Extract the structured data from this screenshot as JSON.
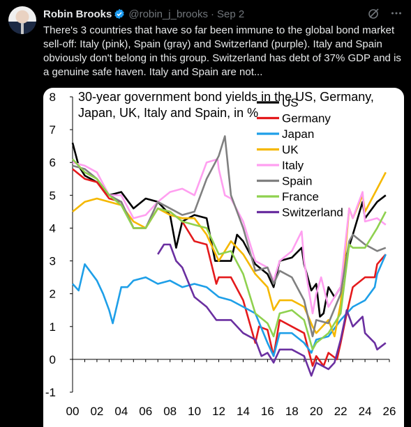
{
  "tweet": {
    "author_name": "Robin Brooks",
    "handle": "@robin_j_brooks",
    "separator": "·",
    "date": "Sep 2",
    "text": "There's 3 countries that have so far been immune to the global bond market sell-off: Italy (pink), Spain (gray) and Switzerland (purple). Italy and Spain obviously don't belong in this group. Switzerland has debt of 37% GDP and is a genuine safe haven. Italy and Spain are not...",
    "icons": [
      "verified-badge-icon",
      "grok-icon",
      "more-icon"
    ]
  },
  "chart_data": {
    "type": "line",
    "title": "30-year government bond yields in the US, Germany, Japan, UK, Italy and Spain, in %",
    "title_lines": [
      "30-year government bond yields in the US, Germany,",
      "Japan, UK, Italy and Spain, in %"
    ],
    "xlabel": "",
    "ylabel": "",
    "xlim": [
      2000,
      2026
    ],
    "ylim": [
      -1,
      8
    ],
    "x_ticks": [
      "00",
      "02",
      "04",
      "06",
      "08",
      "10",
      "12",
      "14",
      "16",
      "18",
      "20",
      "22",
      "24",
      "26"
    ],
    "y_ticks": [
      "-1",
      "0",
      "1",
      "2",
      "3",
      "4",
      "5",
      "6",
      "7",
      "8"
    ],
    "grid": false,
    "legend_position": "top-right",
    "series": [
      {
        "name": "US",
        "color": "#000000",
        "x": [
          2000,
          2000.5,
          2001,
          2002,
          2003,
          2004,
          2005,
          2006,
          2007,
          2007.5,
          2008,
          2008.5,
          2009,
          2010,
          2011,
          2011.7,
          2012,
          2013,
          2013.5,
          2014,
          2015,
          2016,
          2016.5,
          2017,
          2018,
          2018.8,
          2019,
          2019.6,
          2020,
          2020.3,
          2020.6,
          2021,
          2021.5,
          2022,
          2022.5,
          2023,
          2023.8,
          2024,
          2024.8,
          2025,
          2025.7
        ],
        "y": [
          6.6,
          5.9,
          5.6,
          5.4,
          5.0,
          5.1,
          4.6,
          4.9,
          4.8,
          4.6,
          4.4,
          3.4,
          4.2,
          4.4,
          4.3,
          3.0,
          3.0,
          3.0,
          3.8,
          3.6,
          2.9,
          2.6,
          2.2,
          3.0,
          3.1,
          3.4,
          2.9,
          2.1,
          2.3,
          1.3,
          1.4,
          2.2,
          1.9,
          2.2,
          3.2,
          3.8,
          4.8,
          4.3,
          4.7,
          4.8,
          5.0
        ]
      },
      {
        "name": "Germany",
        "color": "#e41a1c",
        "x": [
          2000,
          2001,
          2002,
          2003,
          2004,
          2005,
          2006,
          2007,
          2008,
          2009,
          2010,
          2011,
          2011.8,
          2012,
          2013,
          2014,
          2015,
          2015.3,
          2016,
          2016.5,
          2017,
          2018,
          2019,
          2019.7,
          2020,
          2020.6,
          2021,
          2021.7,
          2022,
          2022.5,
          2023,
          2024,
          2024.8,
          2025,
          2025.7
        ],
        "y": [
          5.8,
          5.5,
          5.4,
          4.9,
          4.8,
          4.0,
          4.0,
          4.6,
          4.5,
          4.2,
          3.6,
          3.5,
          2.3,
          2.5,
          2.5,
          1.8,
          0.5,
          1.0,
          0.9,
          0.1,
          1.2,
          1.0,
          0.8,
          -0.2,
          0.1,
          -0.2,
          0.2,
          0.0,
          0.5,
          1.4,
          2.2,
          2.5,
          2.5,
          2.9,
          3.2
        ]
      },
      {
        "name": "Japan",
        "color": "#1e9fe8",
        "x": [
          2000,
          2000.5,
          2001,
          2002,
          2002.5,
          2003,
          2003.3,
          2004,
          2004.5,
          2005,
          2006,
          2007,
          2008,
          2009,
          2010,
          2011,
          2012,
          2013,
          2014,
          2015,
          2016,
          2016.5,
          2017,
          2018,
          2019,
          2019.6,
          2020,
          2021,
          2022,
          2023,
          2024,
          2024.8,
          2025,
          2025.7
        ],
        "y": [
          2.3,
          2.1,
          2.9,
          2.4,
          2.0,
          1.5,
          1.1,
          2.2,
          2.2,
          2.4,
          2.5,
          2.3,
          2.4,
          2.2,
          2.3,
          2.2,
          1.9,
          1.8,
          1.6,
          1.4,
          0.5,
          0.1,
          0.8,
          0.8,
          0.5,
          0.2,
          0.6,
          0.7,
          1.2,
          1.6,
          1.8,
          2.2,
          2.6,
          3.2
        ]
      },
      {
        "name": "UK",
        "color": "#f5b800",
        "x": [
          2000,
          2001,
          2002,
          2003,
          2004,
          2005,
          2006,
          2007,
          2008,
          2009,
          2010,
          2011,
          2012,
          2013,
          2014,
          2015,
          2016,
          2016.5,
          2017,
          2018,
          2019,
          2019.7,
          2020,
          2021,
          2021.5,
          2022,
          2022.7,
          2023,
          2023.8,
          2024,
          2025,
          2025.7
        ],
        "y": [
          4.5,
          4.8,
          4.9,
          4.8,
          4.7,
          4.2,
          4.0,
          4.6,
          4.4,
          4.3,
          4.3,
          3.8,
          3.0,
          3.6,
          3.2,
          2.6,
          2.2,
          1.5,
          1.8,
          1.8,
          1.6,
          1.0,
          0.8,
          1.2,
          0.7,
          1.7,
          4.6,
          4.3,
          5.0,
          4.5,
          5.2,
          5.7
        ]
      },
      {
        "name": "Italy",
        "color": "#ff9ff0",
        "x": [
          2000,
          2001,
          2002,
          2003,
          2004,
          2005,
          2006,
          2007,
          2008,
          2009,
          2010,
          2011,
          2011.9,
          2012,
          2012.5,
          2013,
          2014,
          2015,
          2016,
          2016.5,
          2017,
          2018,
          2018.8,
          2019,
          2019.7,
          2020,
          2020.4,
          2021,
          2022,
          2022.7,
          2023,
          2023.8,
          2024,
          2025,
          2025.7
        ],
        "y": [
          6.0,
          5.9,
          5.7,
          5.0,
          5.0,
          4.3,
          4.4,
          4.8,
          5.1,
          5.2,
          5.0,
          6.0,
          6.1,
          5.8,
          5.0,
          4.9,
          4.2,
          3.0,
          2.8,
          2.4,
          3.0,
          3.3,
          3.9,
          3.0,
          1.4,
          2.0,
          2.5,
          1.6,
          2.2,
          4.6,
          4.3,
          5.1,
          4.2,
          4.3,
          4.1
        ]
      },
      {
        "name": "Spain",
        "color": "#808080",
        "x": [
          2000,
          2001,
          2002,
          2003,
          2004,
          2005,
          2006,
          2007,
          2008,
          2009,
          2010,
          2011,
          2012,
          2012.5,
          2013,
          2014,
          2015,
          2016,
          2016.5,
          2017,
          2018,
          2019,
          2019.7,
          2020,
          2021,
          2022,
          2022.7,
          2023,
          2024,
          2025,
          2025.7
        ],
        "y": [
          5.9,
          5.8,
          5.5,
          5.0,
          4.8,
          4.0,
          4.0,
          4.8,
          4.6,
          4.4,
          4.5,
          5.5,
          6.2,
          6.8,
          5.0,
          4.0,
          2.7,
          2.8,
          2.3,
          2.7,
          2.5,
          1.8,
          0.7,
          1.2,
          1.1,
          2.0,
          3.6,
          3.8,
          3.5,
          3.3,
          3.4
        ]
      },
      {
        "name": "France",
        "color": "#8fd14f",
        "x": [
          2000,
          2001,
          2002,
          2003,
          2004,
          2005,
          2006,
          2007,
          2008,
          2009,
          2010,
          2011,
          2012,
          2013,
          2014,
          2015,
          2016,
          2016.5,
          2017,
          2018,
          2019,
          2019.7,
          2020,
          2021,
          2022,
          2022.7,
          2023,
          2024,
          2025,
          2025.7
        ],
        "y": [
          6.1,
          5.7,
          5.5,
          5.0,
          4.7,
          4.0,
          4.0,
          4.6,
          4.5,
          4.2,
          4.1,
          4.0,
          3.2,
          3.3,
          2.6,
          1.4,
          1.1,
          0.7,
          1.4,
          1.5,
          1.2,
          0.3,
          0.5,
          0.8,
          1.4,
          3.5,
          3.4,
          3.4,
          4.0,
          4.5
        ]
      },
      {
        "name": "Switzerland",
        "color": "#6a2fa0",
        "x": [
          2007,
          2007.5,
          2008,
          2008.5,
          2009,
          2010,
          2011,
          2011.8,
          2012,
          2013,
          2014,
          2015,
          2015.5,
          2016,
          2016.5,
          2017,
          2018,
          2019,
          2019.6,
          2020,
          2021,
          2021.5,
          2022,
          2022.5,
          2023,
          2023.8,
          2024,
          2024.8,
          2025,
          2025.7
        ],
        "y": [
          3.2,
          3.5,
          3.5,
          3.0,
          2.8,
          1.9,
          1.6,
          1.2,
          1.2,
          1.2,
          0.8,
          0.6,
          0.1,
          0.2,
          -0.1,
          0.3,
          0.3,
          0.1,
          -0.5,
          -0.1,
          -0.3,
          -0.1,
          0.6,
          1.5,
          1.0,
          1.3,
          0.8,
          0.5,
          0.3,
          0.5
        ]
      }
    ]
  }
}
